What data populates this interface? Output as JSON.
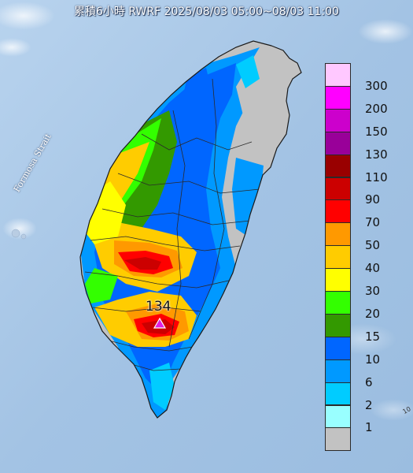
{
  "title": "累積6小時 RWRF 2025/08/03 05:00~08/03 11:00",
  "strait_label": "Formosa Strait",
  "max_marker": {
    "value": "134",
    "color": "#e020e0"
  },
  "colors": {
    "ocean": "#a7c6e6",
    "land_bg": "#c2c2c2",
    "border": "#2a2a2a"
  },
  "legend": [
    {
      "label": "300",
      "color": "#ffc8ff"
    },
    {
      "label": "200",
      "color": "#ff00ff"
    },
    {
      "label": "150",
      "color": "#cc00cc"
    },
    {
      "label": "130",
      "color": "#990099"
    },
    {
      "label": "110",
      "color": "#990000"
    },
    {
      "label": "90",
      "color": "#cc0000"
    },
    {
      "label": "70",
      "color": "#ff0000"
    },
    {
      "label": "50",
      "color": "#ff9900"
    },
    {
      "label": "40",
      "color": "#ffcc00"
    },
    {
      "label": "30",
      "color": "#ffff00"
    },
    {
      "label": "20",
      "color": "#33ff00"
    },
    {
      "label": "15",
      "color": "#339900"
    },
    {
      "label": "10",
      "color": "#0066ff"
    },
    {
      "label": "6",
      "color": "#0099ff"
    },
    {
      "label": "2",
      "color": "#00ccff"
    },
    {
      "label": "1",
      "color": "#99ffff"
    },
    {
      "label": "",
      "color": "#c2c2c2"
    }
  ],
  "scale_fragment": "10"
}
